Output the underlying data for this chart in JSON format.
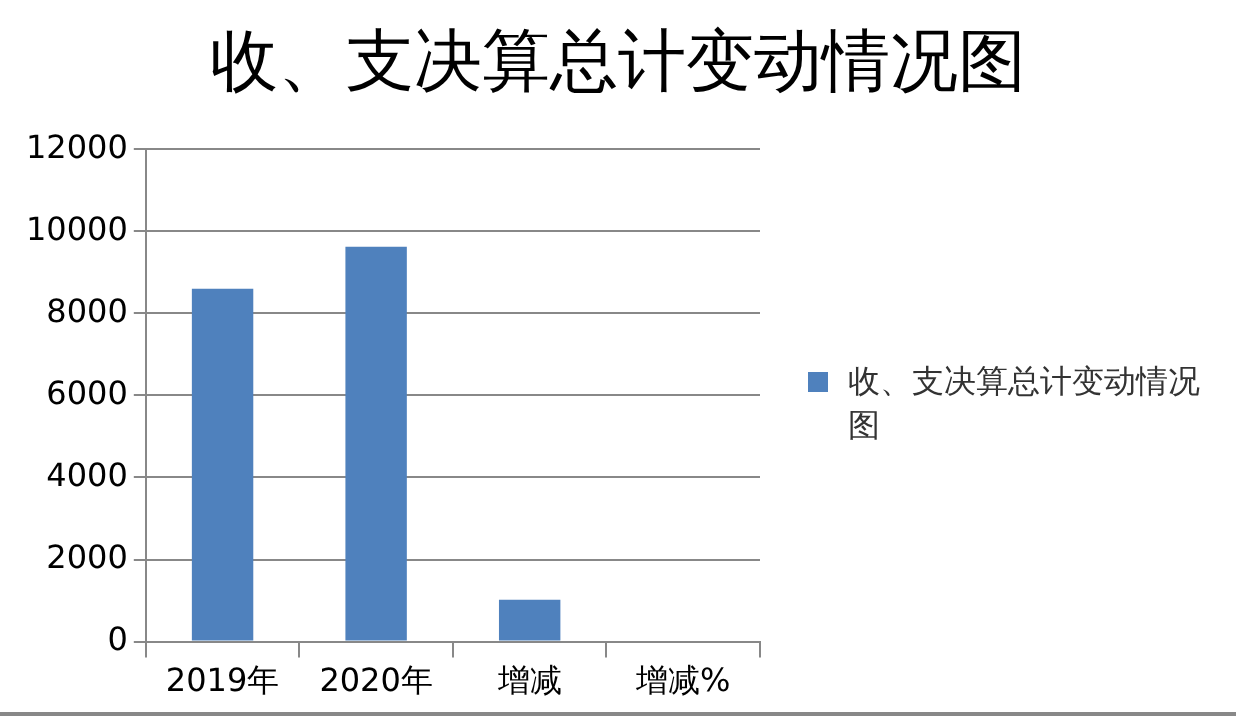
{
  "chart_data": {
    "type": "bar",
    "title": "收、支决算总计变动情况图",
    "categories": [
      "2019年",
      "2020年",
      "增减",
      "增减%"
    ],
    "series": [
      {
        "name": "收、支决算总计变动情况图",
        "color": "#4f81bd",
        "values": [
          8600,
          9620,
          1020,
          null
        ]
      }
    ],
    "ylim": [
      0,
      12000
    ],
    "yticks": [
      0,
      2000,
      4000,
      6000,
      8000,
      10000,
      12000
    ],
    "grid": "y",
    "legend": "right"
  }
}
